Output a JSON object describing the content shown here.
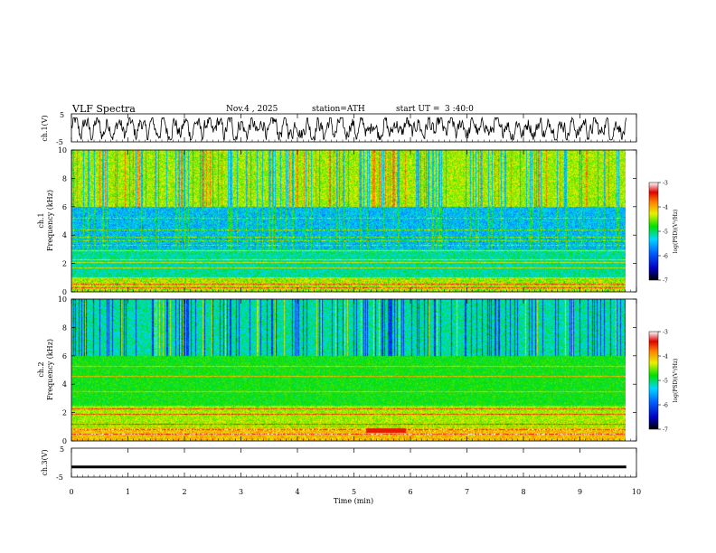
{
  "header": {
    "title": "VLF Spectra",
    "date": "Nov.4 , 2025",
    "station": "station=ATH",
    "start_label": "start UT = ",
    "start_time": "3 :40:0"
  },
  "chart_data": [
    {
      "type": "line",
      "name": "ch1-waveform",
      "ylabel": "ch.1(V)",
      "ylim": [
        -5,
        5
      ],
      "yticks": [
        "5",
        "-5"
      ],
      "xlim": [
        0,
        10
      ],
      "note": "dense voltage trace oscillating roughly between -4 and 3 V"
    },
    {
      "type": "heatmap",
      "name": "ch1-spectrogram",
      "ylabel": "ch.1\nFrequency (kHz)",
      "ylabel_line1": "ch.1",
      "ylabel_line2": "Frequency (kHz)",
      "ylim": [
        0,
        10
      ],
      "yticks": [
        "0",
        "2",
        "4",
        "6",
        "8",
        "10"
      ],
      "xlim": [
        0,
        9.8
      ],
      "colorbar": {
        "label": "log(PSD)(V²/Hz)",
        "range": [
          -7,
          -3
        ],
        "ticks": [
          "-3",
          "-4",
          "-5",
          "-6",
          "-7"
        ]
      },
      "lines_khz": [
        0.3,
        0.6,
        1.0,
        1.7,
        2.1,
        2.3,
        2.9,
        3.3,
        3.6,
        3.9,
        4.4,
        5.2
      ],
      "blue_band_khz": [
        3.0,
        6.0
      ],
      "bright_band_khz": [
        6.0,
        10.0
      ]
    },
    {
      "type": "heatmap",
      "name": "ch2-spectrogram",
      "ylabel_line1": "ch.2",
      "ylabel_line2": "Frequency (kHz)",
      "ylim": [
        0,
        10
      ],
      "yticks": [
        "0",
        "2",
        "4",
        "6",
        "8",
        "10"
      ],
      "xlim": [
        0,
        9.8
      ],
      "colorbar": {
        "label": "log(PSD)(V²/Hz)",
        "range": [
          -7,
          -3
        ],
        "ticks": [
          "-3",
          "-4",
          "-5",
          "-6",
          "-7"
        ]
      },
      "lines_khz": [
        0.5,
        0.8,
        1.2,
        1.9,
        2.3,
        3.5,
        4.6,
        5.3
      ],
      "red_patch": {
        "t": [
          5.2,
          5.9
        ],
        "f": [
          0.6,
          0.9
        ]
      }
    },
    {
      "type": "line",
      "name": "ch3-waveform",
      "ylabel": "ch.3(V)",
      "ylim": [
        -5,
        5
      ],
      "yticks": [
        "5",
        "-5"
      ],
      "xlim": [
        0,
        10
      ],
      "value_approx": -1.5
    }
  ],
  "x_axis": {
    "label": "Time (min)",
    "ticks": [
      "0",
      "1",
      "2",
      "3",
      "4",
      "5",
      "6",
      "7",
      "8",
      "9",
      "10"
    ]
  }
}
